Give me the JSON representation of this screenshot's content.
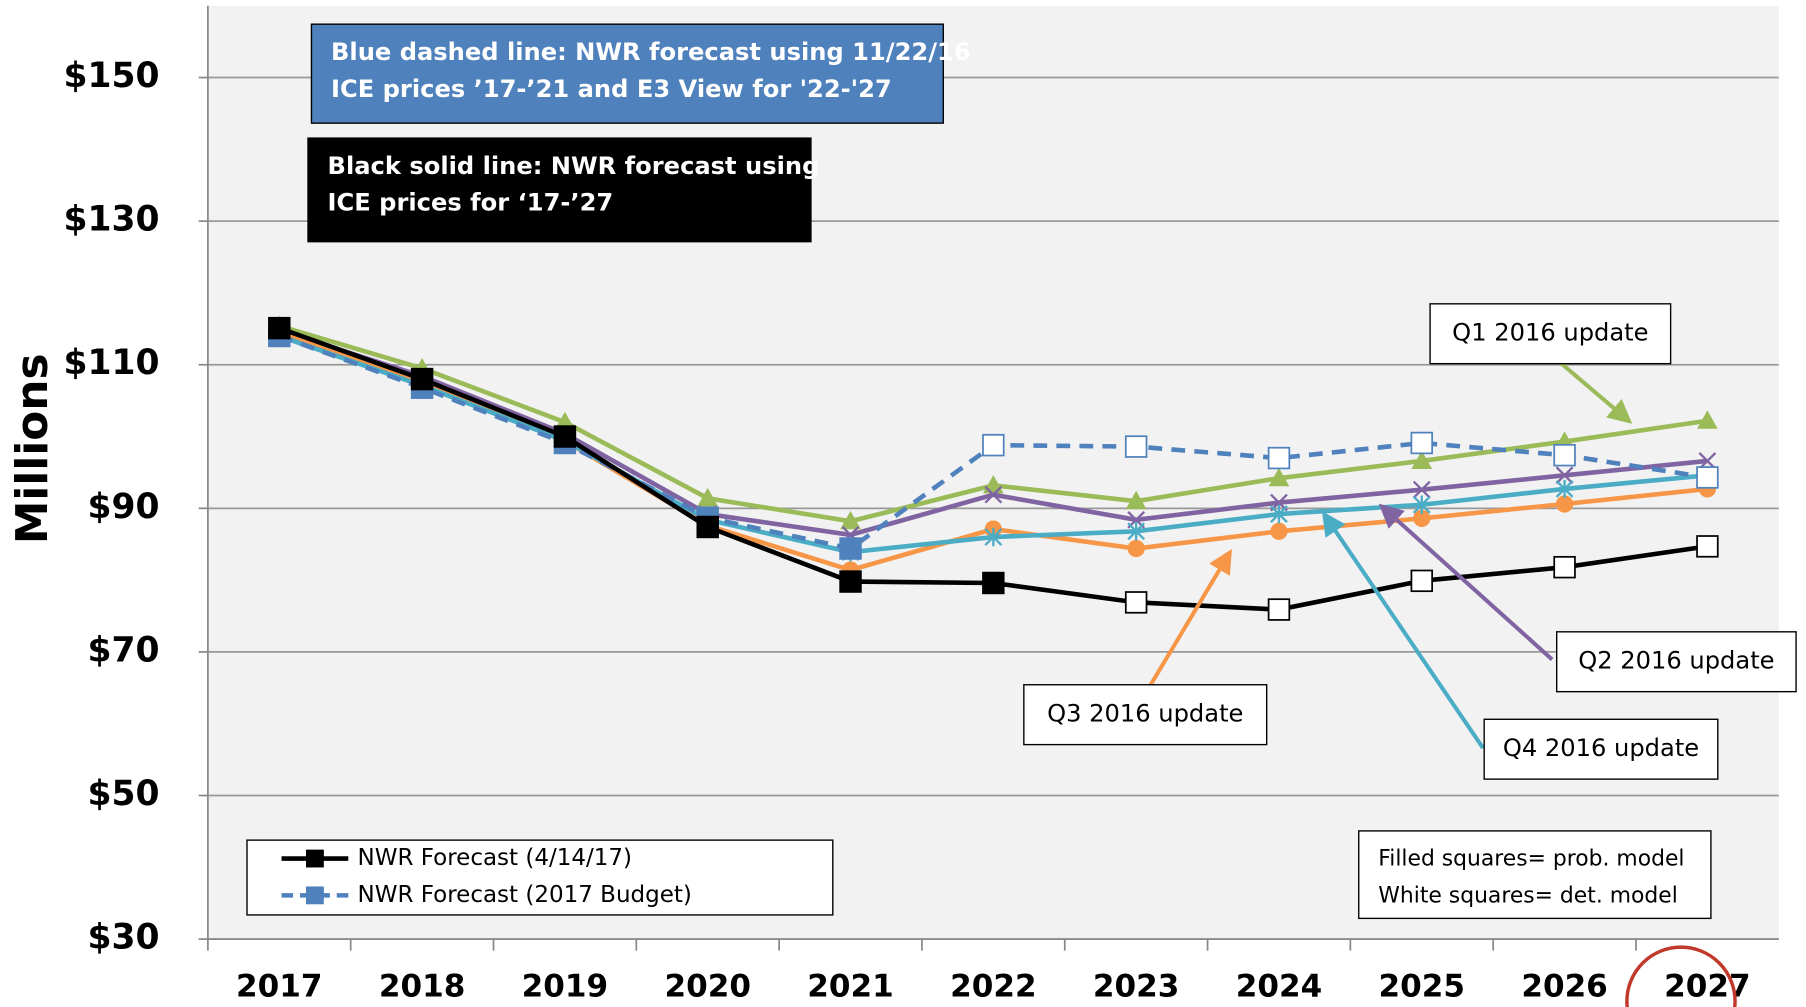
{
  "chart_data": {
    "type": "line",
    "y_axis_label": "Millions",
    "categories": [
      "2017",
      "2018",
      "2019",
      "2020",
      "2021",
      "2022",
      "2023",
      "2024",
      "2025",
      "2026",
      "2027"
    ],
    "ylim": [
      30,
      160
    ],
    "yticks": [
      {
        "value": 30,
        "label": "$30"
      },
      {
        "value": 50,
        "label": "$50"
      },
      {
        "value": 70,
        "label": "$70"
      },
      {
        "value": 90,
        "label": "$90"
      },
      {
        "value": 110,
        "label": "$110"
      },
      {
        "value": 130,
        "label": "$130"
      },
      {
        "value": 150,
        "label": "$150"
      }
    ],
    "grid": true,
    "series": [
      {
        "color": "#9bbb59",
        "marker": "triangle",
        "values": [
          115.4,
          109.5,
          102,
          91.4,
          88.2,
          93.2,
          91,
          94.2,
          96.6,
          99.3,
          102.2
        ]
      },
      {
        "color": "#8064a2",
        "marker": "x",
        "values": [
          114.8,
          108.4,
          100.4,
          89.2,
          86.3,
          91.9,
          88.4,
          90.8,
          92.6,
          94.6,
          96.6
        ]
      },
      {
        "color": "#f79646",
        "marker": "circle",
        "values": [
          114.5,
          107.4,
          99.4,
          87.6,
          81.4,
          87.1,
          84.4,
          86.8,
          88.6,
          90.6,
          92.7
        ]
      },
      {
        "color": "#4bacc6",
        "marker": "asterisk",
        "values": [
          114,
          107.1,
          99.4,
          88.4,
          83.9,
          86,
          86.8,
          89.2,
          90.5,
          92.7,
          94.6
        ]
      },
      {
        "name": "NWR Forecast (2017 Budget)",
        "color": "#4f81bd",
        "dashed": true,
        "marker": "square",
        "marker_fills": [
          "#4f81bd",
          "#4f81bd",
          "#4f81bd",
          "#4f81bd",
          "#4f81bd",
          "#ffffff",
          "#ffffff",
          "#ffffff",
          "#ffffff",
          "#ffffff",
          "#ffffff"
        ],
        "values": [
          114,
          106.8,
          99.1,
          88.7,
          84.4,
          98.8,
          98.6,
          97,
          99.1,
          97.4,
          94.3
        ]
      },
      {
        "name": "NWR Forecast (4/14/17)",
        "color": "#000000",
        "marker": "square",
        "marker_fills": [
          "#000000",
          "#000000",
          "#000000",
          "#000000",
          "#000000",
          "#000000",
          "#ffffff",
          "#ffffff",
          "#ffffff",
          "#ffffff",
          "#ffffff"
        ],
        "values": [
          115.1,
          108,
          100,
          87.4,
          79.8,
          79.6,
          76.9,
          75.9,
          79.9,
          81.8,
          84.7
        ]
      }
    ],
    "annotations": [
      {
        "text": "Q1 2016 update",
        "color": "#9bbb59"
      },
      {
        "text": "Q2 2016 update",
        "color": "#8064a2"
      },
      {
        "text": "Q3 2016 update",
        "color": "#f79646"
      },
      {
        "text": "Q4 2016 update",
        "color": "#4bacc6"
      }
    ],
    "blue_note": [
      "Blue dashed line:  NWR forecast using 11/22/16",
      "ICE prices ’17-’21 and E3 View for '22-'27"
    ],
    "black_note": [
      "Black solid line:  NWR forecast using",
      "ICE prices for ‘17-’27"
    ],
    "model_note": [
      "Filled squares= prob. model",
      "White squares= det. model"
    ]
  }
}
